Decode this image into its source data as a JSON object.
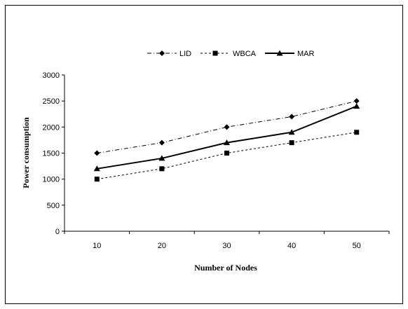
{
  "chart_data": {
    "type": "line",
    "title": "",
    "xlabel": "Number of Nodes",
    "ylabel": "Power consumption",
    "categories": [
      "10",
      "20",
      "30",
      "40",
      "50"
    ],
    "ylim": [
      0,
      3000
    ],
    "yticks": [
      "0",
      "500",
      "1000",
      "1500",
      "2000",
      "2500",
      "3000"
    ],
    "grid": false,
    "legend_position": "top",
    "series": [
      {
        "name": "LID",
        "values": [
          1500,
          1700,
          2000,
          2200,
          2500
        ],
        "marker": "diamond",
        "line_style": "dash-dot",
        "color": "#000000"
      },
      {
        "name": "WBCA",
        "values": [
          1000,
          1200,
          1500,
          1700,
          1900
        ],
        "marker": "square",
        "line_style": "dashed",
        "color": "#000000"
      },
      {
        "name": "MAR",
        "values": [
          1200,
          1400,
          1700,
          1900,
          2400
        ],
        "marker": "triangle",
        "line_style": "solid",
        "color": "#000000"
      }
    ]
  }
}
